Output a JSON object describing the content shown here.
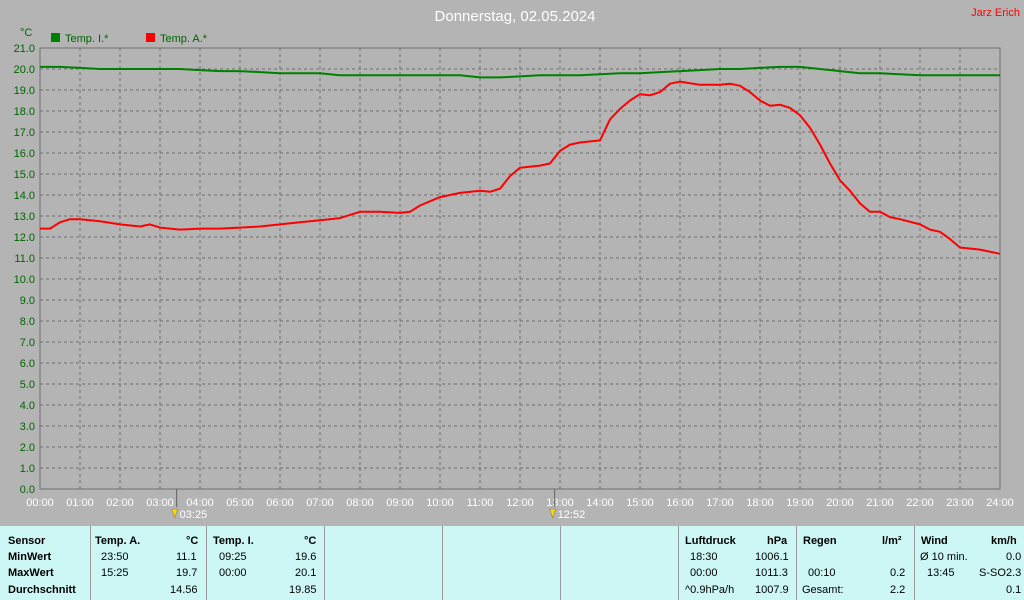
{
  "chart_data": {
    "type": "line",
    "title": "Donnerstag, 02.05.2024",
    "author": "Jarz Erich",
    "y_unit": "°C",
    "ylim": [
      0,
      21
    ],
    "y_ticks": [
      "0.0",
      "1.0",
      "2.0",
      "3.0",
      "4.0",
      "5.0",
      "6.0",
      "7.0",
      "8.0",
      "9.0",
      "10.0",
      "11.0",
      "12.0",
      "13.0",
      "14.0",
      "15.0",
      "16.0",
      "17.0",
      "18.0",
      "19.0",
      "20.0",
      "21.0"
    ],
    "xlim": [
      0,
      24
    ],
    "x_ticks": [
      "00:00",
      "01:00",
      "02:00",
      "03:00",
      "04:00",
      "05:00",
      "06:00",
      "07:00",
      "08:00",
      "09:00",
      "10:00",
      "11:00",
      "12:00",
      "13:00",
      "14:00",
      "15:00",
      "16:00",
      "17:00",
      "18:00",
      "19:00",
      "20:00",
      "21:00",
      "22:00",
      "23:00",
      "24:00"
    ],
    "grid": true,
    "legend_position": "top-left",
    "sun_markers": [
      {
        "label": "03:25",
        "time": 3.417
      },
      {
        "label": "12:52",
        "time": 12.867
      }
    ],
    "series": [
      {
        "name": "Temp. I.*",
        "color": "#008000",
        "x": [
          0,
          0.5,
          1,
          1.5,
          2,
          2.5,
          3,
          3.5,
          4,
          4.5,
          5,
          5.5,
          6,
          6.5,
          7,
          7.5,
          8,
          8.5,
          9,
          9.5,
          10,
          10.5,
          11,
          11.5,
          12,
          12.5,
          13,
          13.5,
          14,
          14.5,
          15,
          15.5,
          16,
          16.5,
          17,
          17.5,
          18,
          18.5,
          19,
          19.5,
          20,
          20.5,
          21,
          21.5,
          22,
          22.5,
          23,
          23.5,
          24
        ],
        "values": [
          20.1,
          20.1,
          20.05,
          20.0,
          20.0,
          20.0,
          20.0,
          20.0,
          19.95,
          19.9,
          19.9,
          19.85,
          19.8,
          19.8,
          19.8,
          19.7,
          19.7,
          19.7,
          19.7,
          19.7,
          19.7,
          19.7,
          19.6,
          19.6,
          19.65,
          19.7,
          19.7,
          19.7,
          19.75,
          19.8,
          19.8,
          19.85,
          19.9,
          19.95,
          20.0,
          20.0,
          20.05,
          20.1,
          20.1,
          20.0,
          19.9,
          19.8,
          19.8,
          19.75,
          19.7,
          19.7,
          19.7,
          19.7,
          19.7
        ]
      },
      {
        "name": "Temp. A.*",
        "color": "#ff0000",
        "x": [
          0,
          0.25,
          0.5,
          0.75,
          1,
          1.5,
          2,
          2.5,
          2.75,
          3,
          3.5,
          4,
          4.5,
          5,
          5.5,
          6,
          6.5,
          7,
          7.5,
          8,
          8.5,
          9,
          9.25,
          9.5,
          10,
          10.5,
          11,
          11.25,
          11.5,
          11.75,
          12,
          12.5,
          12.75,
          13,
          13.25,
          13.5,
          14,
          14.25,
          14.5,
          14.75,
          15,
          15.25,
          15.5,
          15.75,
          16,
          16.5,
          17,
          17.25,
          17.5,
          17.75,
          18,
          18.25,
          18.5,
          18.75,
          19,
          19.25,
          19.5,
          19.75,
          20,
          20.25,
          20.5,
          20.75,
          21,
          21.25,
          21.5,
          22,
          22.25,
          22.5,
          22.75,
          23,
          23.5,
          24
        ],
        "values": [
          12.4,
          12.4,
          12.7,
          12.85,
          12.85,
          12.75,
          12.6,
          12.5,
          12.6,
          12.45,
          12.35,
          12.4,
          12.4,
          12.45,
          12.5,
          12.6,
          12.7,
          12.8,
          12.9,
          13.2,
          13.2,
          13.15,
          13.2,
          13.5,
          13.9,
          14.1,
          14.2,
          14.15,
          14.3,
          14.9,
          15.3,
          15.4,
          15.5,
          16.1,
          16.4,
          16.5,
          16.6,
          17.6,
          18.1,
          18.5,
          18.8,
          18.75,
          18.9,
          19.3,
          19.4,
          19.25,
          19.25,
          19.3,
          19.2,
          18.9,
          18.5,
          18.25,
          18.3,
          18.15,
          17.8,
          17.2,
          16.4,
          15.5,
          14.7,
          14.2,
          13.6,
          13.2,
          13.2,
          12.95,
          12.85,
          12.6,
          12.35,
          12.25,
          11.9,
          11.5,
          11.4,
          11.2
        ]
      }
    ]
  },
  "stats": {
    "sensor": {
      "header": "Sensor",
      "rows": [
        "MinWert",
        "MaxWert",
        "Durchschnitt"
      ]
    },
    "temp_a": {
      "header": "Temp. A.",
      "unit": "°C",
      "min_time": "23:50",
      "min": "11.1",
      "max_time": "15:25",
      "max": "19.7",
      "avg": "14.56"
    },
    "temp_i": {
      "header": "Temp. I.",
      "unit": "°C",
      "min_time": "09:25",
      "min": "19.6",
      "max_time": "00:00",
      "max": "20.1",
      "avg": "19.85"
    },
    "luftdruck": {
      "header": "Luftdruck",
      "unit": "hPa",
      "r1_label": "18:30",
      "r1_val": "1006.1",
      "r2_label": "00:00",
      "r2_val": "1011.3",
      "r3_label": "^0.9hPa/h",
      "r3_val": "1007.9"
    },
    "regen": {
      "header": "Regen",
      "unit": "l/m²",
      "r2_label": "00:10",
      "r2_val": "0.2",
      "r3_label": "Gesamt:",
      "r3_val": "2.2"
    },
    "wind": {
      "header": "Wind",
      "unit": "km/h",
      "r1_label": "Ø 10 min.",
      "r1_val": "0.0",
      "r2_label": "13:45",
      "r2_dir": "S-SO",
      "r2_val": "2.3",
      "r3_val": "0.1"
    }
  }
}
